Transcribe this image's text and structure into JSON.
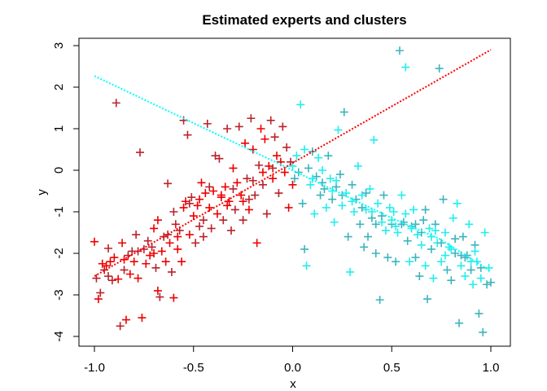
{
  "chart_data": {
    "type": "scatter",
    "title": "Estimated experts and clusters",
    "xlabel": "x",
    "ylabel": "y",
    "xlim": [
      -1.08,
      1.1
    ],
    "ylim": [
      -4.25,
      3.2
    ],
    "x_ticks": [
      -1.0,
      -0.5,
      0.0,
      0.5,
      1.0
    ],
    "x_tick_labels": [
      "-1.0",
      "-0.5",
      "0.0",
      "0.5",
      "1.0"
    ],
    "y_ticks": [
      3,
      2,
      1,
      0,
      -1,
      -2,
      -3,
      -4
    ],
    "y_tick_labels": [
      "3",
      "2",
      "1",
      "0",
      "-1",
      "-2",
      "-3",
      "-4"
    ],
    "grid": false,
    "marker": "plus",
    "series": [
      {
        "colors": [
          "#ee0000",
          "#b8232b"
        ],
        "points": [
          [
            -1.0,
            -1.72
          ],
          [
            -0.99,
            -2.6
          ],
          [
            -0.98,
            -3.1
          ],
          [
            -0.97,
            -2.95
          ],
          [
            -0.96,
            -2.25
          ],
          [
            -0.95,
            -2.4
          ],
          [
            -0.94,
            -2.3
          ],
          [
            -0.93,
            -1.88
          ],
          [
            -0.92,
            -2.2
          ],
          [
            -0.91,
            -2.65
          ],
          [
            -0.9,
            -2.1
          ],
          [
            -0.89,
            1.62
          ],
          [
            -0.88,
            -2.62
          ],
          [
            -0.87,
            -3.75
          ],
          [
            -0.86,
            -1.75
          ],
          [
            -0.85,
            -2.4
          ],
          [
            -0.84,
            -3.6
          ],
          [
            -0.83,
            -2.05
          ],
          [
            -0.82,
            -2.5
          ],
          [
            -0.81,
            -1.95
          ],
          [
            -0.8,
            -2.2
          ],
          [
            -0.79,
            -1.55
          ],
          [
            -0.78,
            -2.6
          ],
          [
            -0.77,
            0.43
          ],
          [
            -0.76,
            -3.55
          ],
          [
            -0.75,
            -1.9
          ],
          [
            -0.74,
            -2.25
          ],
          [
            -0.73,
            -1.7
          ],
          [
            -0.72,
            -2.05
          ],
          [
            -0.71,
            -1.85
          ],
          [
            -0.7,
            -1.4
          ],
          [
            -0.69,
            -2.35
          ],
          [
            -0.68,
            -2.9
          ],
          [
            -0.67,
            -3.05
          ],
          [
            -0.66,
            -1.95
          ],
          [
            -0.65,
            -1.6
          ],
          [
            -0.64,
            -2.2
          ],
          [
            -0.63,
            -0.32
          ],
          [
            -0.62,
            -1.75
          ],
          [
            -0.61,
            -2.45
          ],
          [
            -0.6,
            -3.07
          ],
          [
            -0.59,
            -1.3
          ],
          [
            -0.58,
            -1.9
          ],
          [
            -0.57,
            -1.45
          ],
          [
            -0.56,
            -2.2
          ],
          [
            -0.55,
            1.2
          ],
          [
            -0.54,
            -0.75
          ],
          [
            -0.53,
            0.85
          ],
          [
            -0.52,
            -1.55
          ],
          [
            -0.51,
            -0.65
          ],
          [
            -0.5,
            -1.1
          ],
          [
            -0.49,
            -1.75
          ],
          [
            -0.48,
            -0.85
          ],
          [
            -0.47,
            -1.35
          ],
          [
            -0.46,
            -0.3
          ],
          [
            -0.45,
            -1.6
          ],
          [
            -0.44,
            -0.55
          ],
          [
            -0.43,
            1.12
          ],
          [
            -0.42,
            -0.9
          ],
          [
            -0.41,
            -1.4
          ],
          [
            -0.4,
            -0.5
          ],
          [
            -0.39,
            0.35
          ],
          [
            -0.38,
            -1.05
          ],
          [
            -0.37,
            0.28
          ],
          [
            -0.36,
            -0.65
          ],
          [
            -0.35,
            -1.2
          ],
          [
            -0.34,
            -0.4
          ],
          [
            -0.33,
            1.0
          ],
          [
            -0.32,
            -0.75
          ],
          [
            -0.31,
            -1.45
          ],
          [
            -0.3,
            0.05
          ],
          [
            -0.29,
            -0.95
          ],
          [
            -0.28,
            -0.3
          ],
          [
            -0.27,
            1.05
          ],
          [
            -0.26,
            -0.6
          ],
          [
            -0.25,
            -1.2
          ],
          [
            -0.24,
            0.65
          ],
          [
            -0.23,
            -0.2
          ],
          [
            -0.22,
            -0.95
          ],
          [
            -0.21,
            1.25
          ],
          [
            -0.2,
            0.5
          ],
          [
            -0.19,
            -0.6
          ],
          [
            -0.18,
            -1.75
          ],
          [
            -0.17,
            0.12
          ],
          [
            -0.16,
            1.0
          ],
          [
            -0.15,
            -0.35
          ],
          [
            -0.14,
            0.75
          ],
          [
            -0.13,
            -1.05
          ],
          [
            -0.12,
            0.1
          ],
          [
            -0.11,
            1.2
          ],
          [
            -0.1,
            -0.2
          ],
          [
            -0.09,
            0.8
          ],
          [
            -0.08,
            0.35
          ],
          [
            -0.07,
            -0.55
          ],
          [
            -0.06,
            0.2
          ],
          [
            -0.05,
            1.05
          ],
          [
            -0.04,
            -0.05
          ],
          [
            -0.03,
            0.55
          ],
          [
            -0.02,
            -0.9
          ],
          [
            -0.01,
            0.2
          ],
          [
            0.0,
            -0.35
          ],
          [
            -0.93,
            -2.55
          ],
          [
            -0.85,
            -2.15
          ],
          [
            -0.78,
            -1.95
          ],
          [
            -0.7,
            -2.0
          ],
          [
            -0.63,
            -1.55
          ],
          [
            -0.58,
            -1.6
          ],
          [
            -0.52,
            -0.8
          ],
          [
            -0.47,
            -0.7
          ],
          [
            -0.42,
            -0.4
          ],
          [
            -0.36,
            -0.6
          ],
          [
            -0.3,
            -0.45
          ],
          [
            -0.25,
            -0.75
          ],
          [
            -0.2,
            -0.25
          ],
          [
            -0.15,
            -0.05
          ],
          [
            -0.1,
            0.05
          ],
          [
            -0.68,
            -1.2
          ],
          [
            -0.6,
            -1.0
          ],
          [
            -0.55,
            -0.9
          ],
          [
            -0.45,
            -1.2
          ],
          [
            -0.33,
            -0.85
          ],
          [
            -0.22,
            -0.7
          ]
        ]
      },
      {
        "colors": [
          "#22eeee",
          "#3cb4be"
        ],
        "points": [
          [
            0.0,
            0.1
          ],
          [
            0.01,
            -0.2
          ],
          [
            0.02,
            0.35
          ],
          [
            0.03,
            -0.05
          ],
          [
            0.04,
            1.58
          ],
          [
            0.05,
            -0.8
          ],
          [
            0.06,
            0.5
          ],
          [
            0.06,
            -1.9
          ],
          [
            0.07,
            -2.3
          ],
          [
            0.08,
            0.05
          ],
          [
            0.09,
            -0.35
          ],
          [
            0.1,
            0.45
          ],
          [
            0.11,
            -1.05
          ],
          [
            0.12,
            -0.15
          ],
          [
            0.13,
            0.3
          ],
          [
            0.14,
            -0.6
          ],
          [
            0.15,
            0.0
          ],
          [
            0.16,
            -0.45
          ],
          [
            0.17,
            -0.9
          ],
          [
            0.18,
            0.35
          ],
          [
            0.19,
            -0.2
          ],
          [
            0.2,
            -0.7
          ],
          [
            0.21,
            -1.25
          ],
          [
            0.22,
            -0.4
          ],
          [
            0.23,
            0.97
          ],
          [
            0.24,
            -0.1
          ],
          [
            0.25,
            -0.85
          ],
          [
            0.26,
            1.4
          ],
          [
            0.27,
            -0.55
          ],
          [
            0.28,
            -1.6
          ],
          [
            0.29,
            -2.45
          ],
          [
            0.3,
            -0.35
          ],
          [
            0.31,
            -1.0
          ],
          [
            0.32,
            -0.7
          ],
          [
            0.33,
            0.1
          ],
          [
            0.34,
            -1.3
          ],
          [
            0.35,
            -0.6
          ],
          [
            0.36,
            -1.85
          ],
          [
            0.37,
            -0.95
          ],
          [
            0.38,
            -1.6
          ],
          [
            0.39,
            -0.45
          ],
          [
            0.4,
            -1.15
          ],
          [
            0.41,
            0.73
          ],
          [
            0.42,
            -2.0
          ],
          [
            0.43,
            -0.8
          ],
          [
            0.44,
            -3.12
          ],
          [
            0.45,
            -1.25
          ],
          [
            0.46,
            -0.6
          ],
          [
            0.47,
            -1.45
          ],
          [
            0.48,
            -2.1
          ],
          [
            0.49,
            -0.9
          ],
          [
            0.5,
            -1.3
          ],
          [
            0.51,
            -1.0
          ],
          [
            0.52,
            -2.2
          ],
          [
            0.53,
            -1.5
          ],
          [
            0.54,
            2.88
          ],
          [
            0.55,
            -0.6
          ],
          [
            0.56,
            -1.25
          ],
          [
            0.57,
            2.48
          ],
          [
            0.58,
            -1.7
          ],
          [
            0.59,
            -2.2
          ],
          [
            0.6,
            -1.35
          ],
          [
            0.61,
            -0.95
          ],
          [
            0.62,
            -2.1
          ],
          [
            0.63,
            -1.55
          ],
          [
            0.64,
            -2.55
          ],
          [
            0.65,
            -1.8
          ],
          [
            0.66,
            -1.2
          ],
          [
            0.67,
            -2.3
          ],
          [
            0.68,
            -3.1
          ],
          [
            0.69,
            -1.4
          ],
          [
            0.7,
            -1.9
          ],
          [
            0.71,
            -2.6
          ],
          [
            0.72,
            -1.3
          ],
          [
            0.73,
            -1.75
          ],
          [
            0.74,
            2.45
          ],
          [
            0.75,
            -2.2
          ],
          [
            0.76,
            -0.7
          ],
          [
            0.77,
            -1.5
          ],
          [
            0.78,
            -2.4
          ],
          [
            0.79,
            -1.85
          ],
          [
            0.8,
            -2.65
          ],
          [
            0.81,
            -1.15
          ],
          [
            0.82,
            -2.0
          ],
          [
            0.83,
            -0.8
          ],
          [
            0.84,
            -3.68
          ],
          [
            0.85,
            -2.3
          ],
          [
            0.86,
            -1.6
          ],
          [
            0.87,
            -2.55
          ],
          [
            0.88,
            -2.05
          ],
          [
            0.89,
            -1.3
          ],
          [
            0.9,
            -2.4
          ],
          [
            0.91,
            -2.75
          ],
          [
            0.92,
            -1.8
          ],
          [
            0.93,
            -2.2
          ],
          [
            0.94,
            -3.45
          ],
          [
            0.95,
            -2.6
          ],
          [
            0.96,
            -3.9
          ],
          [
            0.97,
            -1.5
          ],
          [
            0.98,
            -2.75
          ],
          [
            0.99,
            -2.35
          ],
          [
            1.0,
            -2.7
          ],
          [
            0.1,
            -0.2
          ],
          [
            0.15,
            -0.3
          ],
          [
            0.2,
            -0.5
          ],
          [
            0.25,
            -0.6
          ],
          [
            0.3,
            -0.75
          ],
          [
            0.35,
            -0.9
          ],
          [
            0.4,
            -1.0
          ],
          [
            0.45,
            -1.1
          ],
          [
            0.5,
            -1.2
          ],
          [
            0.55,
            -1.3
          ],
          [
            0.6,
            -1.4
          ],
          [
            0.65,
            -1.5
          ],
          [
            0.7,
            -1.6
          ],
          [
            0.75,
            -1.75
          ],
          [
            0.8,
            -1.9
          ],
          [
            0.85,
            -2.05
          ],
          [
            0.9,
            -2.2
          ],
          [
            0.95,
            -2.35
          ],
          [
            0.22,
            -0.25
          ],
          [
            0.37,
            -0.55
          ],
          [
            0.52,
            -1.35
          ],
          [
            0.62,
            -1.3
          ],
          [
            0.72,
            -1.45
          ],
          [
            0.82,
            -1.65
          ],
          [
            0.92,
            -1.95
          ],
          [
            0.42,
            -1.3
          ],
          [
            0.57,
            -1.05
          ],
          [
            0.67,
            -0.95
          ],
          [
            0.77,
            -2.05
          ],
          [
            0.87,
            -2.1
          ]
        ]
      }
    ],
    "lines": [
      {
        "color": "#ff0000",
        "style": "dotted",
        "points": [
          [
            -1.0,
            -2.55
          ],
          [
            1.0,
            2.9
          ]
        ]
      },
      {
        "color": "#00ffff",
        "style": "dotted",
        "points": [
          [
            -1.0,
            2.27
          ],
          [
            0.0,
            0.0
          ],
          [
            0.26,
            -0.6
          ],
          [
            0.5,
            -1.15
          ],
          [
            0.74,
            -1.65
          ],
          [
            1.0,
            -2.43
          ]
        ]
      }
    ]
  }
}
